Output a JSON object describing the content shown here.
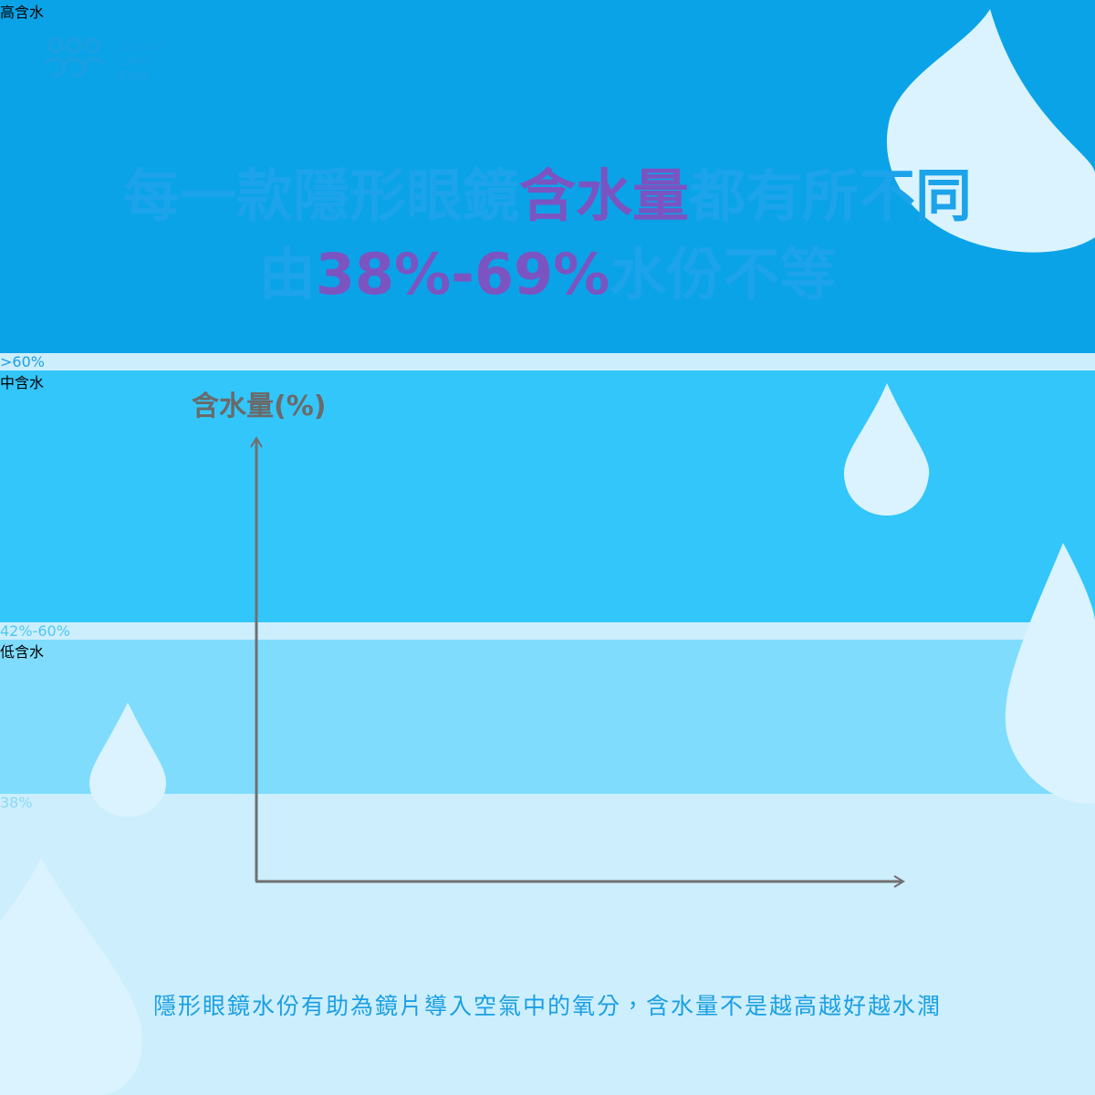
{
  "logo": {
    "lines": [
      "Contact",
      "Lens",
      "Easy"
    ]
  },
  "title": {
    "lines": [
      [
        {
          "text": "每一款隱形眼鏡",
          "color": "#1ca3ea"
        },
        {
          "text": "含水量",
          "color": "#7b54c1"
        },
        {
          "text": "都有所不同",
          "color": "#1ca3ea"
        }
      ],
      [
        {
          "text": "由",
          "color": "#1ca3ea"
        },
        {
          "text": "38%-69%",
          "color": "#7b54c1"
        },
        {
          "text": "水份不等",
          "color": "#1ca3ea"
        }
      ]
    ]
  },
  "chart": {
    "axis_label": "含水量(%)",
    "bars": [
      {
        "label": "高含水",
        "value_label": ">60%",
        "color": "#0aa3e8",
        "label_color": "#1b9fe4"
      },
      {
        "label": "中含水",
        "value_label": "42%-60%",
        "color": "#33c6fb",
        "label_color": "#4cc8f5"
      },
      {
        "label": "低含水",
        "value_label": "38%",
        "color": "#7fdcfd",
        "label_color": "#8ad9f5"
      }
    ]
  },
  "footer": "隱形眼鏡水份有助為鏡片導入空氣中的氧分，含水量不是越高越好越水潤"
}
